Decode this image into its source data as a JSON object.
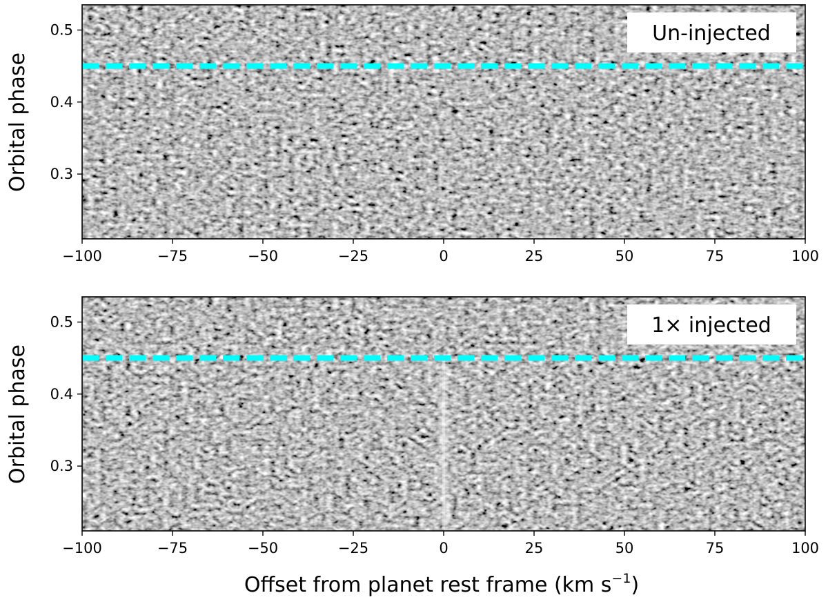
{
  "figure": {
    "xlabel": "Offset from planet rest frame (km s",
    "xlabel_sup": "−1",
    "xlabel_close": ")"
  },
  "colors": {
    "marker": "#00ffff",
    "frame": "#000000",
    "label_box": "#ffffff"
  },
  "chart_data": [
    {
      "type": "heatmap",
      "colormap": "gray",
      "label": "Un-injected",
      "legend_position": "top-right",
      "ylabel": "Orbital phase",
      "xlim": [
        -100,
        100
      ],
      "ylim": [
        0.21,
        0.535
      ],
      "x_ticks": [
        -100,
        -75,
        -50,
        -25,
        0,
        25,
        50,
        75,
        100
      ],
      "x_tick_labels": [
        "−100",
        "−75",
        "−50",
        "−25",
        "0",
        "25",
        "50",
        "75",
        "100"
      ],
      "y_ticks": [
        0.3,
        0.4,
        0.5
      ],
      "y_tick_labels": [
        "0.3",
        "0.4",
        "0.5"
      ],
      "reference_line": {
        "y": 0.45,
        "style": "dashed"
      },
      "signal": null
    },
    {
      "type": "heatmap",
      "colormap": "gray",
      "label": "1× injected",
      "legend_position": "top-right",
      "ylabel": "Orbital phase",
      "xlim": [
        -100,
        100
      ],
      "ylim": [
        0.21,
        0.535
      ],
      "x_ticks": [
        -100,
        -75,
        -50,
        -25,
        0,
        25,
        50,
        75,
        100
      ],
      "x_tick_labels": [
        "−100",
        "−75",
        "−50",
        "−25",
        "0",
        "25",
        "50",
        "75",
        "100"
      ],
      "y_ticks": [
        0.3,
        0.4,
        0.5
      ],
      "y_tick_labels": [
        "0.3",
        "0.4",
        "0.5"
      ],
      "reference_line": {
        "y": 0.45,
        "style": "dashed"
      },
      "signal": {
        "x": 0,
        "phase_range": [
          0.21,
          0.45
        ],
        "form": "bright vertical trail"
      }
    }
  ]
}
